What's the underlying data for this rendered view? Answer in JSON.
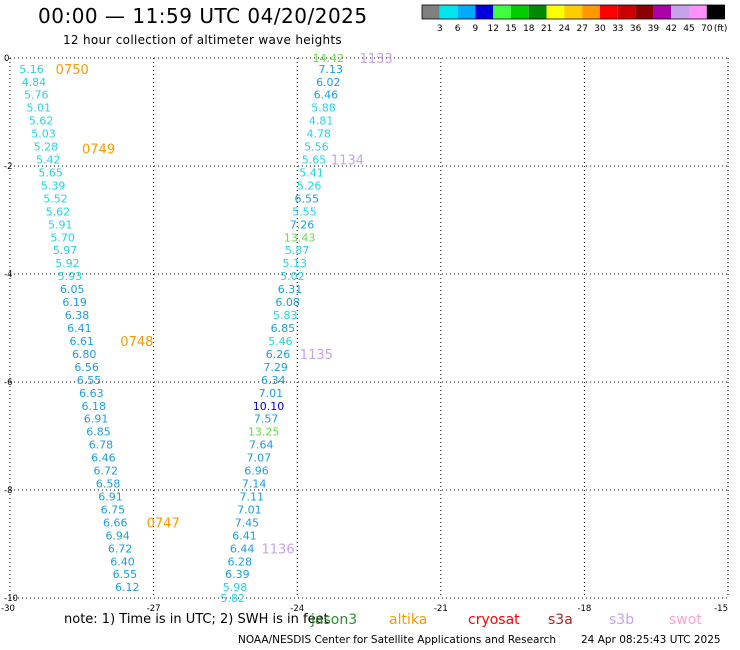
{
  "header": {
    "title": "00:00 — 11:59 UTC 04/20/2025",
    "subtitle": "12 hour collection of altimeter wave heights"
  },
  "footer": {
    "note": "note: 1) Time is in UTC; 2) SWH is in feet",
    "credit_org": "NOAA/NESDIS Center for Satellite Applications and Research",
    "credit_time": "24 Apr 08:25:43 UTC 2025",
    "satellites": [
      {
        "name": "jason3",
        "color": "#2e8b2e"
      },
      {
        "name": "altika",
        "color": "#ff9900"
      },
      {
        "name": "cryosat",
        "color": "#ff0000"
      },
      {
        "name": "s3a",
        "color": "#b22222"
      },
      {
        "name": "s3b",
        "color": "#c8a2e8"
      },
      {
        "name": "swot",
        "color": "#ff9ed8"
      }
    ]
  },
  "colorbar": {
    "labels": [
      "3",
      "6",
      "9",
      "12",
      "15",
      "18",
      "21",
      "24",
      "27",
      "30",
      "33",
      "36",
      "39",
      "42",
      "45",
      "70",
      "(ft)"
    ],
    "colors": [
      "#808080",
      "#00e5ee",
      "#00aaff",
      "#0000dd",
      "#40ff40",
      "#00cc00",
      "#008800",
      "#ffff00",
      "#ffcc00",
      "#ff9900",
      "#ff0000",
      "#cc0000",
      "#880000",
      "#aa00aa",
      "#c8a2e8",
      "#ff90ff",
      "#000000"
    ]
  },
  "chart_data": {
    "type": "scatter",
    "title": "00:00 — 11:59 UTC 04/20/2025",
    "subtitle": "12 hour collection of altimeter wave heights",
    "xlim": [
      -30,
      -15
    ],
    "ylim": [
      -10,
      0
    ],
    "x_ticks": [
      "-30",
      "-27",
      "-24",
      "-21",
      "-18",
      "-15"
    ],
    "y_ticks": [
      "0",
      "-2",
      "-4",
      "-6",
      "-8",
      "-10"
    ],
    "grid": true,
    "tracks": [
      {
        "satellite": "altika",
        "points": [
          {
            "x": -29.55,
            "y": -0.2,
            "v": "5.16"
          },
          {
            "x": -29.5,
            "y": -0.44,
            "v": "4.84"
          },
          {
            "x": -29.45,
            "y": -0.68,
            "v": "5.76"
          },
          {
            "x": -29.4,
            "y": -0.92,
            "v": "5.01"
          },
          {
            "x": -29.35,
            "y": -1.16,
            "v": "5.62"
          },
          {
            "x": -29.3,
            "y": -1.4,
            "v": "5.03"
          },
          {
            "x": -29.25,
            "y": -1.64,
            "v": "5.28"
          },
          {
            "x": -29.2,
            "y": -1.88,
            "v": "5.42"
          },
          {
            "x": -29.15,
            "y": -2.12,
            "v": "5.65"
          },
          {
            "x": -29.1,
            "y": -2.36,
            "v": "5.39"
          },
          {
            "x": -29.05,
            "y": -2.6,
            "v": "5.52"
          },
          {
            "x": -29.0,
            "y": -2.84,
            "v": "5.62"
          },
          {
            "x": -28.95,
            "y": -3.08,
            "v": "5.91"
          },
          {
            "x": -28.9,
            "y": -3.32,
            "v": "5.70"
          },
          {
            "x": -28.85,
            "y": -3.56,
            "v": "5.97"
          },
          {
            "x": -28.8,
            "y": -3.8,
            "v": "5.92"
          },
          {
            "x": -28.75,
            "y": -4.04,
            "v": "5.93"
          },
          {
            "x": -28.7,
            "y": -4.28,
            "v": "6.05"
          },
          {
            "x": -28.65,
            "y": -4.52,
            "v": "6.19"
          },
          {
            "x": -28.6,
            "y": -4.76,
            "v": "6.38"
          },
          {
            "x": -28.55,
            "y": -5.0,
            "v": "6.41"
          },
          {
            "x": -28.5,
            "y": -5.24,
            "v": "6.61"
          },
          {
            "x": -28.45,
            "y": -5.48,
            "v": "6.80"
          },
          {
            "x": -28.4,
            "y": -5.72,
            "v": "6.56"
          },
          {
            "x": -28.35,
            "y": -5.96,
            "v": "6.55"
          },
          {
            "x": -28.3,
            "y": -6.2,
            "v": "6.63"
          },
          {
            "x": -28.25,
            "y": -6.44,
            "v": "6.18"
          },
          {
            "x": -28.2,
            "y": -6.68,
            "v": "6.91"
          },
          {
            "x": -28.15,
            "y": -6.92,
            "v": "6.85"
          },
          {
            "x": -28.1,
            "y": -7.16,
            "v": "6.78"
          },
          {
            "x": -28.05,
            "y": -7.4,
            "v": "6.46"
          },
          {
            "x": -28.0,
            "y": -7.64,
            "v": "6.72"
          },
          {
            "x": -27.95,
            "y": -7.88,
            "v": "6.58"
          },
          {
            "x": -27.9,
            "y": -8.12,
            "v": "6.91"
          },
          {
            "x": -27.85,
            "y": -8.36,
            "v": "6.75"
          },
          {
            "x": -27.8,
            "y": -8.6,
            "v": "6.66"
          },
          {
            "x": -27.75,
            "y": -8.84,
            "v": "6.94"
          },
          {
            "x": -27.7,
            "y": -9.08,
            "v": "6.72"
          },
          {
            "x": -27.65,
            "y": -9.32,
            "v": "6.40"
          },
          {
            "x": -27.6,
            "y": -9.56,
            "v": "6.55"
          },
          {
            "x": -27.55,
            "y": -9.8,
            "v": "6.12"
          }
        ],
        "time_labels": [
          {
            "x": -28.7,
            "y": -0.2,
            "t": "0750"
          },
          {
            "x": -28.15,
            "y": -1.68,
            "v": "",
            "t": "0749"
          },
          {
            "x": -27.35,
            "y": -5.24,
            "t": "0748"
          },
          {
            "x": -26.8,
            "y": -8.6,
            "t": "0747"
          }
        ]
      },
      {
        "satellite": "s3b",
        "points": [
          {
            "x": -23.35,
            "y": 0.0,
            "v": "14.42"
          },
          {
            "x": -23.3,
            "y": -0.2,
            "v": "7.13"
          },
          {
            "x": -23.35,
            "y": -0.44,
            "v": "6.02"
          },
          {
            "x": -23.4,
            "y": -0.68,
            "v": "6.46"
          },
          {
            "x": -23.45,
            "y": -0.92,
            "v": "5.88"
          },
          {
            "x": -23.5,
            "y": -1.16,
            "v": "4.81"
          },
          {
            "x": -23.55,
            "y": -1.4,
            "v": "4.78"
          },
          {
            "x": -23.6,
            "y": -1.64,
            "v": "5.56"
          },
          {
            "x": -23.65,
            "y": -1.88,
            "v": "5.65"
          },
          {
            "x": -23.7,
            "y": -2.12,
            "v": "5.41"
          },
          {
            "x": -23.75,
            "y": -2.36,
            "v": "5.26"
          },
          {
            "x": -23.8,
            "y": -2.6,
            "v": "6.55"
          },
          {
            "x": -23.85,
            "y": -2.84,
            "v": "5.55"
          },
          {
            "x": -23.9,
            "y": -3.08,
            "v": "7.26"
          },
          {
            "x": -23.95,
            "y": -3.32,
            "v": "13.43"
          },
          {
            "x": -24.0,
            "y": -3.56,
            "v": "5.87"
          },
          {
            "x": -24.05,
            "y": -3.8,
            "v": "5.13"
          },
          {
            "x": -24.1,
            "y": -4.04,
            "v": "5.02"
          },
          {
            "x": -24.15,
            "y": -4.28,
            "v": "6.31"
          },
          {
            "x": -24.2,
            "y": -4.52,
            "v": "6.08"
          },
          {
            "x": -24.25,
            "y": -4.76,
            "v": "5.83"
          },
          {
            "x": -24.3,
            "y": -5.0,
            "v": "6.85"
          },
          {
            "x": -24.35,
            "y": -5.24,
            "v": "5.46"
          },
          {
            "x": -24.4,
            "y": -5.48,
            "v": "6.26"
          },
          {
            "x": -24.45,
            "y": -5.72,
            "v": "7.29"
          },
          {
            "x": -24.5,
            "y": -5.96,
            "v": "6.34"
          },
          {
            "x": -24.55,
            "y": -6.2,
            "v": "7.01"
          },
          {
            "x": -24.6,
            "y": -6.44,
            "v": "10.10"
          },
          {
            "x": -24.65,
            "y": -6.68,
            "v": "7.57"
          },
          {
            "x": -24.7,
            "y": -6.92,
            "v": "13.25"
          },
          {
            "x": -24.75,
            "y": -7.16,
            "v": "7.64"
          },
          {
            "x": -24.8,
            "y": -7.4,
            "v": "7.07"
          },
          {
            "x": -24.85,
            "y": -7.64,
            "v": "6.96"
          },
          {
            "x": -24.9,
            "y": -7.88,
            "v": "7.14"
          },
          {
            "x": -24.95,
            "y": -8.12,
            "v": "7.11"
          },
          {
            "x": -25.0,
            "y": -8.36,
            "v": "7.01"
          },
          {
            "x": -25.05,
            "y": -8.6,
            "v": "7.45"
          },
          {
            "x": -25.1,
            "y": -8.84,
            "v": "6.41"
          },
          {
            "x": -25.15,
            "y": -9.08,
            "v": "6.44"
          },
          {
            "x": -25.2,
            "y": -9.32,
            "v": "6.28"
          },
          {
            "x": -25.25,
            "y": -9.56,
            "v": "6.39"
          },
          {
            "x": -25.3,
            "y": -9.8,
            "v": "5.98"
          },
          {
            "x": -25.35,
            "y": -10.0,
            "v": "5.82"
          }
        ],
        "time_labels": [
          {
            "x": -22.35,
            "y": 0.0,
            "t": "1133"
          },
          {
            "x": -22.95,
            "y": -1.88,
            "t": "1134"
          },
          {
            "x": -23.6,
            "y": -5.48,
            "t": "1135"
          },
          {
            "x": -24.4,
            "y": -9.08,
            "t": "1136"
          }
        ]
      }
    ]
  }
}
